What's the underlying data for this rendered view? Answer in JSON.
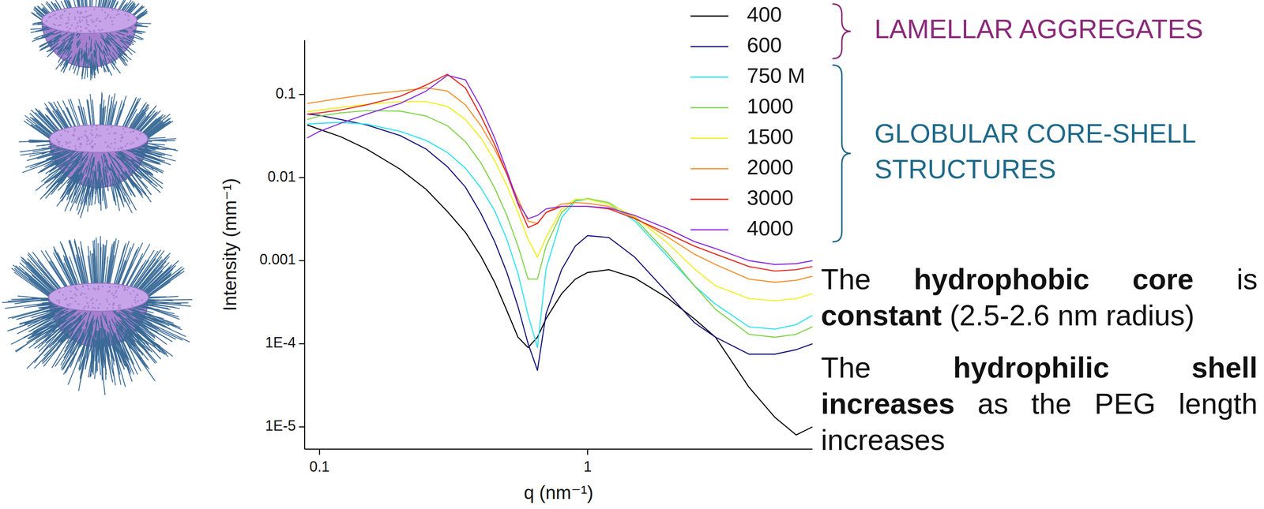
{
  "chart_data": {
    "type": "line",
    "log": true,
    "grid": false,
    "legend": "top-right",
    "x_label": "q (nm⁻¹)",
    "y_label": "Intensity (mm⁻¹)",
    "xlim": [
      0.088,
      6.9
    ],
    "ylim": [
      5.4e-06,
      0.45
    ],
    "xticks": [
      0.1,
      1
    ],
    "yticks": [
      0.1,
      0.01,
      0.001,
      {
        "value": 0.0001,
        "label": "1E-4"
      },
      {
        "value": 1e-05,
        "label": "1E-5"
      }
    ],
    "x": [
      0.09,
      0.1,
      0.12,
      0.15,
      0.2,
      0.25,
      0.3,
      0.35,
      0.4,
      0.45,
      0.5,
      0.55,
      0.6,
      0.65,
      0.7,
      0.8,
      0.9,
      1,
      1.2,
      1.5,
      2,
      2.5,
      3,
      4,
      5,
      6,
      6.9
    ],
    "series": [
      {
        "name": "400",
        "color": "#000000",
        "values": [
          0.043,
          0.038,
          0.031,
          0.022,
          0.0126,
          0.0072,
          0.0039,
          0.0022,
          0.00113,
          0.00055,
          0.00025,
          0.00012,
          9e-05,
          0.00012,
          0.0002,
          0.0004,
          0.0006,
          0.00072,
          0.00078,
          0.00062,
          0.00035,
          0.0002,
          0.00012,
          3e-05,
          1.3e-05,
          8e-06,
          1e-05
        ]
      },
      {
        "name": "600",
        "color": "#14147a",
        "values": [
          0.058,
          0.056,
          0.05,
          0.043,
          0.032,
          0.022,
          0.0135,
          0.0077,
          0.0037,
          0.0017,
          0.00072,
          0.00028,
          0.0001,
          4.8e-05,
          0.00023,
          0.00078,
          0.0015,
          0.002,
          0.0019,
          0.0011,
          0.0004,
          0.00018,
          0.00012,
          7.5e-05,
          7.5e-05,
          8.5e-05,
          0.0001
        ]
      },
      {
        "name": "750 M",
        "color": "#2ee3f0",
        "values": [
          0.044,
          0.045,
          0.046,
          0.044,
          0.036,
          0.028,
          0.02,
          0.013,
          0.0075,
          0.004,
          0.0018,
          0.0007,
          0.00022,
          9e-05,
          0.0008,
          0.0033,
          0.0052,
          0.0055,
          0.0048,
          0.003,
          0.0011,
          0.0005,
          0.0003,
          0.00016,
          0.00015,
          0.00017,
          0.00022
        ]
      },
      {
        "name": "1000",
        "color": "#7fd34a",
        "values": [
          0.05,
          0.055,
          0.06,
          0.064,
          0.063,
          0.055,
          0.042,
          0.027,
          0.015,
          0.0075,
          0.0035,
          0.0015,
          0.0006,
          0.0006,
          0.0015,
          0.0038,
          0.0053,
          0.0056,
          0.005,
          0.0032,
          0.0012,
          0.0005,
          0.00026,
          0.00013,
          0.00012,
          0.00013,
          0.00016
        ]
      },
      {
        "name": "1500",
        "color": "#f2ee22",
        "values": [
          0.062,
          0.065,
          0.07,
          0.076,
          0.082,
          0.082,
          0.072,
          0.05,
          0.03,
          0.016,
          0.008,
          0.0038,
          0.0018,
          0.0011,
          0.0019,
          0.0042,
          0.0055,
          0.0055,
          0.0048,
          0.0034,
          0.0016,
          0.0008,
          0.0005,
          0.00035,
          0.00033,
          0.00035,
          0.0004
        ]
      },
      {
        "name": "2000",
        "color": "#f5902a",
        "values": [
          0.078,
          0.082,
          0.09,
          0.1,
          0.11,
          0.12,
          0.11,
          0.075,
          0.042,
          0.022,
          0.011,
          0.0055,
          0.003,
          0.0028,
          0.0038,
          0.0048,
          0.005,
          0.0049,
          0.0045,
          0.0033,
          0.0019,
          0.0012,
          0.0009,
          0.0006,
          0.00055,
          0.00058,
          0.00065
        ]
      },
      {
        "name": "3000",
        "color": "#e8261c",
        "values": [
          0.058,
          0.06,
          0.065,
          0.075,
          0.095,
          0.13,
          0.175,
          0.12,
          0.055,
          0.025,
          0.011,
          0.0048,
          0.0025,
          0.0028,
          0.0038,
          0.0045,
          0.0045,
          0.0045,
          0.0042,
          0.0032,
          0.0021,
          0.0015,
          0.0012,
          0.00085,
          0.00075,
          0.00078,
          0.00085
        ]
      },
      {
        "name": "4000",
        "color": "#8a2be2",
        "values": [
          0.03,
          0.036,
          0.045,
          0.058,
          0.078,
          0.11,
          0.17,
          0.15,
          0.07,
          0.03,
          0.012,
          0.005,
          0.0032,
          0.0035,
          0.0042,
          0.0045,
          0.0045,
          0.0045,
          0.0043,
          0.0035,
          0.0024,
          0.0017,
          0.0014,
          0.001,
          0.0009,
          0.00092,
          0.001
        ]
      }
    ],
    "groups": [
      {
        "label": "LAMELLAR AGGREGATES",
        "color": "#8b2a7a",
        "members": [
          "400",
          "600"
        ]
      },
      {
        "label": "GLOBULAR CORE-SHELL STRUCTURES",
        "color": "#1f6a8a",
        "members": [
          "750 M",
          "1000",
          "1500",
          "2000",
          "3000",
          "4000"
        ]
      }
    ]
  },
  "notes": [
    {
      "lines": [
        [
          {
            "text": "The "
          },
          {
            "text": "hydrophobic core",
            "bold": true
          },
          {
            "text": " is"
          }
        ],
        [
          {
            "text": "constant",
            "bold": true
          },
          {
            "text": " (2.5-2.6 nm radius)"
          }
        ]
      ]
    },
    {
      "lines": [
        [
          {
            "text": "The "
          },
          {
            "text": "hydrophilic shell",
            "bold": true
          }
        ],
        [
          {
            "text": "increases",
            "bold": true
          },
          {
            "text": " as the PEG length"
          }
        ],
        [
          {
            "text": "increases"
          }
        ]
      ]
    }
  ]
}
